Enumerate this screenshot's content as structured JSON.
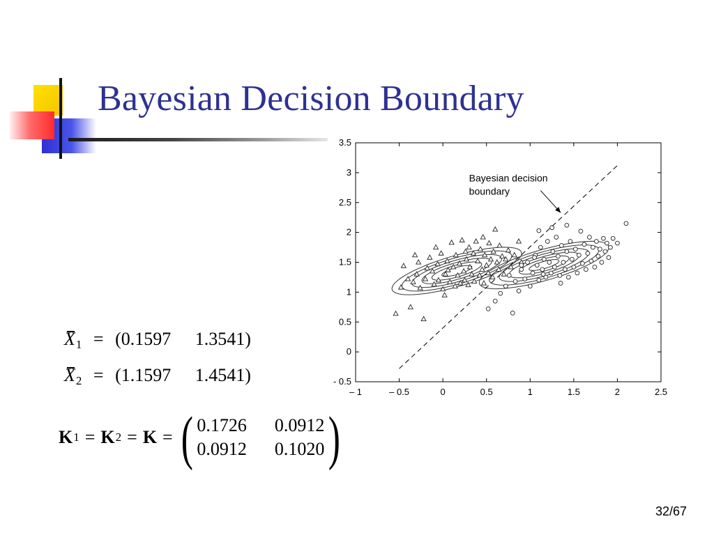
{
  "slide": {
    "title": "Bayesian Decision Boundary",
    "page": "32/67",
    "accent_color": "#2e3192"
  },
  "equations": {
    "x1": {
      "symbol": "X",
      "subscript": "1",
      "values": [
        "(0.1597",
        "1.3541)"
      ]
    },
    "x2": {
      "symbol": "X",
      "subscript": "2",
      "values": [
        "(1.1597",
        "1.4541)"
      ]
    },
    "k": {
      "lhs": [
        "K",
        "1",
        "K",
        "2",
        "K"
      ],
      "matrix": [
        [
          "0.1726",
          "0.0912"
        ],
        [
          "0.0912",
          "0.1020"
        ]
      ]
    }
  },
  "chart_data": {
    "type": "scatter",
    "annotation": [
      "Bayesian decision",
      "boundary"
    ],
    "xlim": [
      -1,
      2.5
    ],
    "ylim": [
      -0.5,
      3.5
    ],
    "x_ticks": [
      -1,
      -0.5,
      0,
      0.5,
      1,
      1.5,
      2,
      2.5
    ],
    "x_tick_labels": [
      "– 1",
      "– 0.5",
      "0",
      "0.5",
      "1",
      "1.5",
      "2",
      "2.5"
    ],
    "y_ticks": [
      -0.5,
      0,
      0.5,
      1,
      1.5,
      2,
      2.5,
      3,
      3.5
    ],
    "y_tick_labels": [
      "- 0.5",
      "0",
      "0.5",
      "1",
      "1.5",
      "2",
      "2.5",
      "3",
      "3.5"
    ],
    "grid": false,
    "boundary_line": [
      [
        -0.5,
        -0.28
      ],
      [
        2.0,
        3.12
      ]
    ],
    "class1_mean": [
      0.1597,
      1.3541
    ],
    "class2_mean": [
      1.1597,
      1.4541
    ],
    "contour_levels": [
      0.3,
      0.5,
      0.7,
      0.9,
      1.1,
      1.3
    ],
    "class1_points": [
      [
        -0.54,
        0.64
      ],
      [
        -0.48,
        1.08
      ],
      [
        -0.45,
        1.44
      ],
      [
        -0.4,
        1.22
      ],
      [
        -0.37,
        0.75
      ],
      [
        -0.34,
        1.17
      ],
      [
        -0.3,
        1.3
      ],
      [
        -0.28,
        1.5
      ],
      [
        -0.26,
        1.07
      ],
      [
        -0.22,
        0.55
      ],
      [
        -0.2,
        1.22
      ],
      [
        -0.18,
        1.4
      ],
      [
        -0.15,
        1.58
      ],
      [
        -0.12,
        1.35
      ],
      [
        -0.1,
        1.13
      ],
      [
        -0.06,
        1.47
      ],
      [
        -0.05,
        1.2
      ],
      [
        -0.02,
        1.65
      ],
      [
        0.0,
        1.05
      ],
      [
        0.03,
        1.3
      ],
      [
        0.05,
        1.52
      ],
      [
        0.06,
        1.37
      ],
      [
        0.08,
        1.17
      ],
      [
        0.1,
        1.83
      ],
      [
        0.12,
        1.42
      ],
      [
        0.14,
        1.1
      ],
      [
        0.15,
        1.62
      ],
      [
        0.17,
        1.28
      ],
      [
        0.19,
        1.48
      ],
      [
        0.2,
        1.15
      ],
      [
        0.22,
        1.87
      ],
      [
        0.24,
        1.35
      ],
      [
        0.25,
        1.2
      ],
      [
        0.27,
        1.55
      ],
      [
        0.29,
        1.12
      ],
      [
        0.3,
        1.75
      ],
      [
        0.31,
        1.42
      ],
      [
        0.33,
        1.3
      ],
      [
        0.35,
        1.65
      ],
      [
        0.36,
        1.18
      ],
      [
        0.38,
        1.85
      ],
      [
        0.4,
        1.52
      ],
      [
        0.42,
        1.28
      ],
      [
        0.43,
        1.72
      ],
      [
        0.45,
        1.38
      ],
      [
        0.47,
        1.15
      ],
      [
        0.48,
        1.62
      ],
      [
        0.5,
        1.45
      ],
      [
        0.52,
        1.32
      ],
      [
        0.53,
        1.82
      ],
      [
        0.55,
        1.55
      ],
      [
        0.57,
        1.25
      ],
      [
        0.58,
        1.68
      ],
      [
        0.6,
        2.05
      ],
      [
        0.62,
        1.5
      ],
      [
        0.64,
        1.38
      ],
      [
        0.65,
        1.78
      ],
      [
        0.68,
        1.6
      ],
      [
        0.7,
        1.3
      ],
      [
        0.72,
        1.55
      ],
      [
        0.75,
        1.7
      ],
      [
        0.78,
        1.42
      ],
      [
        0.82,
        1.62
      ],
      [
        0.87,
        1.85
      ],
      [
        0.9,
        1.5
      ],
      [
        -0.08,
        1.75
      ],
      [
        0.02,
        0.95
      ],
      [
        0.26,
        1.68
      ],
      [
        0.46,
        1.92
      ],
      [
        -0.32,
        1.62
      ]
    ],
    "class2_points": [
      [
        0.52,
        0.72
      ],
      [
        0.6,
        0.85
      ],
      [
        0.66,
        0.98
      ],
      [
        0.72,
        1.1
      ],
      [
        0.76,
        1.28
      ],
      [
        0.8,
        0.65
      ],
      [
        0.83,
        1.18
      ],
      [
        0.87,
        1.02
      ],
      [
        0.9,
        1.38
      ],
      [
        0.94,
        1.22
      ],
      [
        0.97,
        1.5
      ],
      [
        1.0,
        1.1
      ],
      [
        1.03,
        1.32
      ],
      [
        1.06,
        1.62
      ],
      [
        1.08,
        1.45
      ],
      [
        1.1,
        1.2
      ],
      [
        1.12,
        1.75
      ],
      [
        1.14,
        1.38
      ],
      [
        1.16,
        1.55
      ],
      [
        1.18,
        1.25
      ],
      [
        1.2,
        1.85
      ],
      [
        1.22,
        1.5
      ],
      [
        1.24,
        1.32
      ],
      [
        1.26,
        1.68
      ],
      [
        1.28,
        1.42
      ],
      [
        1.3,
        1.92
      ],
      [
        1.32,
        1.6
      ],
      [
        1.34,
        1.28
      ],
      [
        1.36,
        1.78
      ],
      [
        1.38,
        1.5
      ],
      [
        1.4,
        1.38
      ],
      [
        1.42,
        1.68
      ],
      [
        1.44,
        1.25
      ],
      [
        1.46,
        1.85
      ],
      [
        1.48,
        1.55
      ],
      [
        1.5,
        1.42
      ],
      [
        1.52,
        1.72
      ],
      [
        1.54,
        1.32
      ],
      [
        1.56,
        1.62
      ],
      [
        1.58,
        2.02
      ],
      [
        1.6,
        1.48
      ],
      [
        1.62,
        1.8
      ],
      [
        1.64,
        1.38
      ],
      [
        1.66,
        1.65
      ],
      [
        1.68,
        1.92
      ],
      [
        1.7,
        1.52
      ],
      [
        1.72,
        1.75
      ],
      [
        1.74,
        1.42
      ],
      [
        1.76,
        1.85
      ],
      [
        1.78,
        1.6
      ],
      [
        1.8,
        1.72
      ],
      [
        1.82,
        1.5
      ],
      [
        1.84,
        1.9
      ],
      [
        1.86,
        1.68
      ],
      [
        1.88,
        1.82
      ],
      [
        1.9,
        1.58
      ],
      [
        1.92,
        1.75
      ],
      [
        1.95,
        1.9
      ],
      [
        2.0,
        1.82
      ],
      [
        2.1,
        2.15
      ],
      [
        1.25,
        2.08
      ],
      [
        1.1,
        2.03
      ],
      [
        1.42,
        2.12
      ],
      [
        0.9,
        1.45
      ],
      [
        1.05,
        1.58
      ],
      [
        1.35,
        1.15
      ],
      [
        1.15,
        1.3
      ]
    ]
  }
}
